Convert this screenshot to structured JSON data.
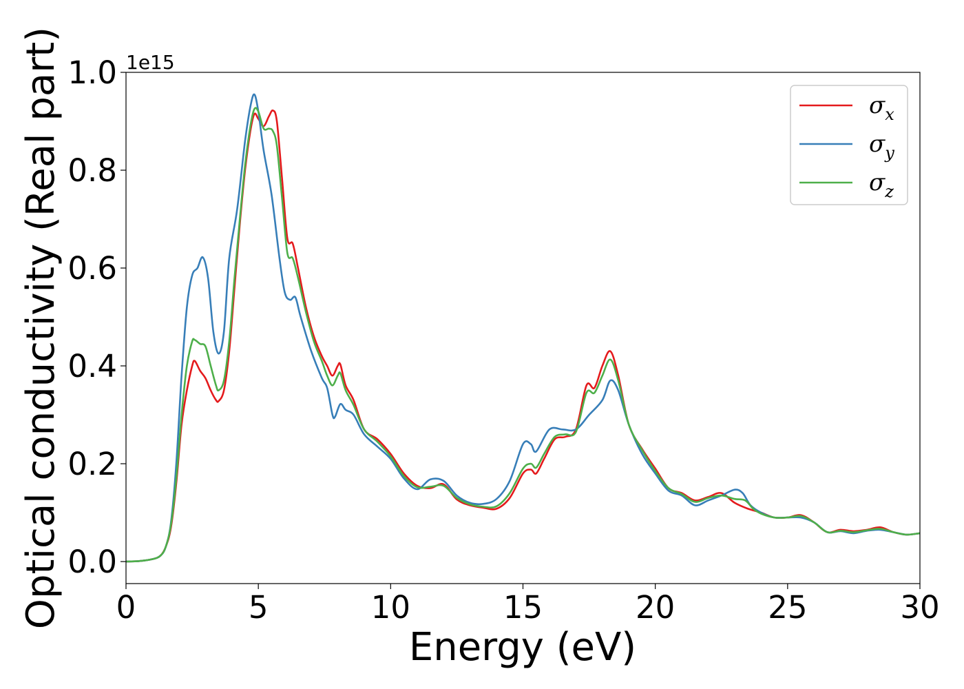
{
  "chart_data": {
    "type": "line",
    "title": "",
    "xlabel": "Energy (eV)",
    "ylabel": "Optical conductivity (Real part)",
    "y_offset_text": "1e15",
    "xlim": [
      0,
      30
    ],
    "ylim": [
      -0.045,
      1.0
    ],
    "y_scale_factor": 1000000000000000.0,
    "xticks": [
      0,
      5,
      10,
      15,
      20,
      25,
      30
    ],
    "xtick_labels": [
      "0",
      "5",
      "10",
      "15",
      "20",
      "25",
      "30"
    ],
    "yticks": [
      0.0,
      0.2,
      0.4,
      0.6,
      0.8,
      1.0
    ],
    "ytick_labels": [
      "0.0",
      "0.2",
      "0.4",
      "0.6",
      "0.8",
      "1.0"
    ],
    "grid": false,
    "legend_position": "top-right",
    "series": [
      {
        "name": "σx",
        "legend_symbol": "σ",
        "legend_subscript": "x",
        "color": "#e41a1c",
        "points": [
          [
            0,
            0
          ],
          [
            0.5,
            0.001
          ],
          [
            1,
            0.005
          ],
          [
            1.3,
            0.012
          ],
          [
            1.5,
            0.03
          ],
          [
            1.7,
            0.07
          ],
          [
            1.9,
            0.16
          ],
          [
            2.1,
            0.28
          ],
          [
            2.3,
            0.35
          ],
          [
            2.5,
            0.4
          ],
          [
            2.6,
            0.41
          ],
          [
            2.8,
            0.39
          ],
          [
            3,
            0.375
          ],
          [
            3.2,
            0.35
          ],
          [
            3.4,
            0.33
          ],
          [
            3.5,
            0.328
          ],
          [
            3.7,
            0.35
          ],
          [
            3.9,
            0.43
          ],
          [
            4.1,
            0.56
          ],
          [
            4.3,
            0.69
          ],
          [
            4.5,
            0.8
          ],
          [
            4.7,
            0.88
          ],
          [
            4.85,
            0.915
          ],
          [
            5.0,
            0.905
          ],
          [
            5.2,
            0.89
          ],
          [
            5.4,
            0.91
          ],
          [
            5.55,
            0.922
          ],
          [
            5.7,
            0.9
          ],
          [
            5.9,
            0.78
          ],
          [
            6.1,
            0.66
          ],
          [
            6.3,
            0.65
          ],
          [
            6.5,
            0.6
          ],
          [
            6.8,
            0.52
          ],
          [
            7.1,
            0.46
          ],
          [
            7.4,
            0.42
          ],
          [
            7.6,
            0.4
          ],
          [
            7.8,
            0.38
          ],
          [
            8.0,
            0.4
          ],
          [
            8.1,
            0.403
          ],
          [
            8.3,
            0.36
          ],
          [
            8.6,
            0.33
          ],
          [
            9,
            0.27
          ],
          [
            9.5,
            0.25
          ],
          [
            10,
            0.22
          ],
          [
            10.5,
            0.18
          ],
          [
            11,
            0.155
          ],
          [
            11.5,
            0.15
          ],
          [
            12,
            0.158
          ],
          [
            12.5,
            0.127
          ],
          [
            13,
            0.115
          ],
          [
            13.5,
            0.11
          ],
          [
            14,
            0.108
          ],
          [
            14.5,
            0.13
          ],
          [
            15,
            0.18
          ],
          [
            15.3,
            0.188
          ],
          [
            15.5,
            0.18
          ],
          [
            15.8,
            0.21
          ],
          [
            16.2,
            0.25
          ],
          [
            16.6,
            0.255
          ],
          [
            17,
            0.27
          ],
          [
            17.4,
            0.36
          ],
          [
            17.7,
            0.355
          ],
          [
            18,
            0.4
          ],
          [
            18.3,
            0.43
          ],
          [
            18.6,
            0.38
          ],
          [
            19,
            0.28
          ],
          [
            19.5,
            0.23
          ],
          [
            20,
            0.19
          ],
          [
            20.5,
            0.15
          ],
          [
            21,
            0.14
          ],
          [
            21.5,
            0.125
          ],
          [
            22,
            0.132
          ],
          [
            22.5,
            0.14
          ],
          [
            23,
            0.12
          ],
          [
            23.5,
            0.108
          ],
          [
            24,
            0.1
          ],
          [
            24.5,
            0.09
          ],
          [
            25,
            0.09
          ],
          [
            25.5,
            0.095
          ],
          [
            26,
            0.08
          ],
          [
            26.5,
            0.06
          ],
          [
            27,
            0.065
          ],
          [
            27.5,
            0.062
          ],
          [
            28,
            0.065
          ],
          [
            28.5,
            0.07
          ],
          [
            29,
            0.06
          ],
          [
            29.5,
            0.055
          ],
          [
            30,
            0.058
          ]
        ]
      },
      {
        "name": "σy",
        "legend_symbol": "σ",
        "legend_subscript": "y",
        "color": "#377eb8",
        "points": [
          [
            0,
            0
          ],
          [
            0.5,
            0.001
          ],
          [
            1,
            0.005
          ],
          [
            1.3,
            0.012
          ],
          [
            1.5,
            0.03
          ],
          [
            1.7,
            0.08
          ],
          [
            1.9,
            0.2
          ],
          [
            2.1,
            0.38
          ],
          [
            2.3,
            0.52
          ],
          [
            2.5,
            0.585
          ],
          [
            2.7,
            0.6
          ],
          [
            2.9,
            0.622
          ],
          [
            3.1,
            0.58
          ],
          [
            3.3,
            0.47
          ],
          [
            3.5,
            0.425
          ],
          [
            3.7,
            0.47
          ],
          [
            3.9,
            0.62
          ],
          [
            4.2,
            0.72
          ],
          [
            4.5,
            0.86
          ],
          [
            4.7,
            0.93
          ],
          [
            4.85,
            0.955
          ],
          [
            5.0,
            0.92
          ],
          [
            5.2,
            0.84
          ],
          [
            5.5,
            0.75
          ],
          [
            5.8,
            0.62
          ],
          [
            6.0,
            0.55
          ],
          [
            6.2,
            0.535
          ],
          [
            6.4,
            0.54
          ],
          [
            6.6,
            0.5
          ],
          [
            7,
            0.43
          ],
          [
            7.4,
            0.375
          ],
          [
            7.6,
            0.355
          ],
          [
            7.8,
            0.3
          ],
          [
            7.9,
            0.296
          ],
          [
            8.1,
            0.322
          ],
          [
            8.3,
            0.31
          ],
          [
            8.6,
            0.3
          ],
          [
            9,
            0.26
          ],
          [
            9.5,
            0.235
          ],
          [
            10,
            0.21
          ],
          [
            10.5,
            0.17
          ],
          [
            11,
            0.148
          ],
          [
            11.5,
            0.168
          ],
          [
            12,
            0.165
          ],
          [
            12.5,
            0.135
          ],
          [
            13,
            0.12
          ],
          [
            13.5,
            0.118
          ],
          [
            14,
            0.128
          ],
          [
            14.5,
            0.165
          ],
          [
            15,
            0.24
          ],
          [
            15.3,
            0.24
          ],
          [
            15.5,
            0.225
          ],
          [
            16,
            0.27
          ],
          [
            16.5,
            0.27
          ],
          [
            17,
            0.27
          ],
          [
            17.5,
            0.3
          ],
          [
            18,
            0.33
          ],
          [
            18.3,
            0.37
          ],
          [
            18.6,
            0.35
          ],
          [
            19,
            0.28
          ],
          [
            19.5,
            0.22
          ],
          [
            20,
            0.18
          ],
          [
            20.5,
            0.145
          ],
          [
            21,
            0.135
          ],
          [
            21.5,
            0.115
          ],
          [
            22,
            0.125
          ],
          [
            22.5,
            0.135
          ],
          [
            23,
            0.147
          ],
          [
            23.3,
            0.14
          ],
          [
            23.6,
            0.115
          ],
          [
            24,
            0.1
          ],
          [
            24.5,
            0.09
          ],
          [
            25,
            0.09
          ],
          [
            25.5,
            0.09
          ],
          [
            26,
            0.08
          ],
          [
            26.5,
            0.06
          ],
          [
            27,
            0.062
          ],
          [
            27.5,
            0.058
          ],
          [
            28,
            0.063
          ],
          [
            28.5,
            0.065
          ],
          [
            29,
            0.06
          ],
          [
            29.5,
            0.055
          ],
          [
            30,
            0.058
          ]
        ]
      },
      {
        "name": "σz",
        "legend_symbol": "σ",
        "legend_subscript": "z",
        "color": "#4daf4a",
        "points": [
          [
            0,
            0
          ],
          [
            0.5,
            0.001
          ],
          [
            1,
            0.005
          ],
          [
            1.3,
            0.012
          ],
          [
            1.5,
            0.03
          ],
          [
            1.7,
            0.075
          ],
          [
            1.9,
            0.17
          ],
          [
            2.1,
            0.3
          ],
          [
            2.3,
            0.4
          ],
          [
            2.5,
            0.45
          ],
          [
            2.6,
            0.453
          ],
          [
            2.8,
            0.445
          ],
          [
            3,
            0.44
          ],
          [
            3.2,
            0.4
          ],
          [
            3.4,
            0.36
          ],
          [
            3.5,
            0.35
          ],
          [
            3.7,
            0.37
          ],
          [
            3.9,
            0.45
          ],
          [
            4.1,
            0.58
          ],
          [
            4.3,
            0.7
          ],
          [
            4.5,
            0.81
          ],
          [
            4.7,
            0.89
          ],
          [
            4.85,
            0.925
          ],
          [
            5.0,
            0.92
          ],
          [
            5.2,
            0.885
          ],
          [
            5.4,
            0.885
          ],
          [
            5.55,
            0.88
          ],
          [
            5.7,
            0.85
          ],
          [
            5.9,
            0.74
          ],
          [
            6.1,
            0.63
          ],
          [
            6.3,
            0.62
          ],
          [
            6.5,
            0.58
          ],
          [
            6.8,
            0.51
          ],
          [
            7.1,
            0.45
          ],
          [
            7.4,
            0.41
          ],
          [
            7.6,
            0.38
          ],
          [
            7.8,
            0.36
          ],
          [
            8.0,
            0.38
          ],
          [
            8.1,
            0.385
          ],
          [
            8.3,
            0.35
          ],
          [
            8.6,
            0.32
          ],
          [
            9,
            0.27
          ],
          [
            9.5,
            0.245
          ],
          [
            10,
            0.215
          ],
          [
            10.5,
            0.175
          ],
          [
            11,
            0.152
          ],
          [
            11.5,
            0.153
          ],
          [
            12,
            0.155
          ],
          [
            12.5,
            0.13
          ],
          [
            13,
            0.117
          ],
          [
            13.5,
            0.112
          ],
          [
            14,
            0.113
          ],
          [
            14.5,
            0.14
          ],
          [
            15,
            0.19
          ],
          [
            15.3,
            0.2
          ],
          [
            15.5,
            0.192
          ],
          [
            15.8,
            0.22
          ],
          [
            16.2,
            0.255
          ],
          [
            16.6,
            0.26
          ],
          [
            17,
            0.265
          ],
          [
            17.4,
            0.345
          ],
          [
            17.7,
            0.345
          ],
          [
            18,
            0.38
          ],
          [
            18.3,
            0.413
          ],
          [
            18.6,
            0.37
          ],
          [
            19,
            0.28
          ],
          [
            19.5,
            0.228
          ],
          [
            20,
            0.185
          ],
          [
            20.5,
            0.15
          ],
          [
            21,
            0.138
          ],
          [
            21.5,
            0.122
          ],
          [
            22,
            0.13
          ],
          [
            22.5,
            0.135
          ],
          [
            23,
            0.128
          ],
          [
            23.4,
            0.125
          ],
          [
            23.7,
            0.108
          ],
          [
            24,
            0.098
          ],
          [
            24.5,
            0.09
          ],
          [
            25,
            0.09
          ],
          [
            25.5,
            0.093
          ],
          [
            26,
            0.08
          ],
          [
            26.5,
            0.06
          ],
          [
            27,
            0.063
          ],
          [
            27.5,
            0.06
          ],
          [
            28,
            0.064
          ],
          [
            28.5,
            0.067
          ],
          [
            29,
            0.06
          ],
          [
            29.5,
            0.055
          ],
          [
            30,
            0.058
          ]
        ]
      }
    ]
  }
}
